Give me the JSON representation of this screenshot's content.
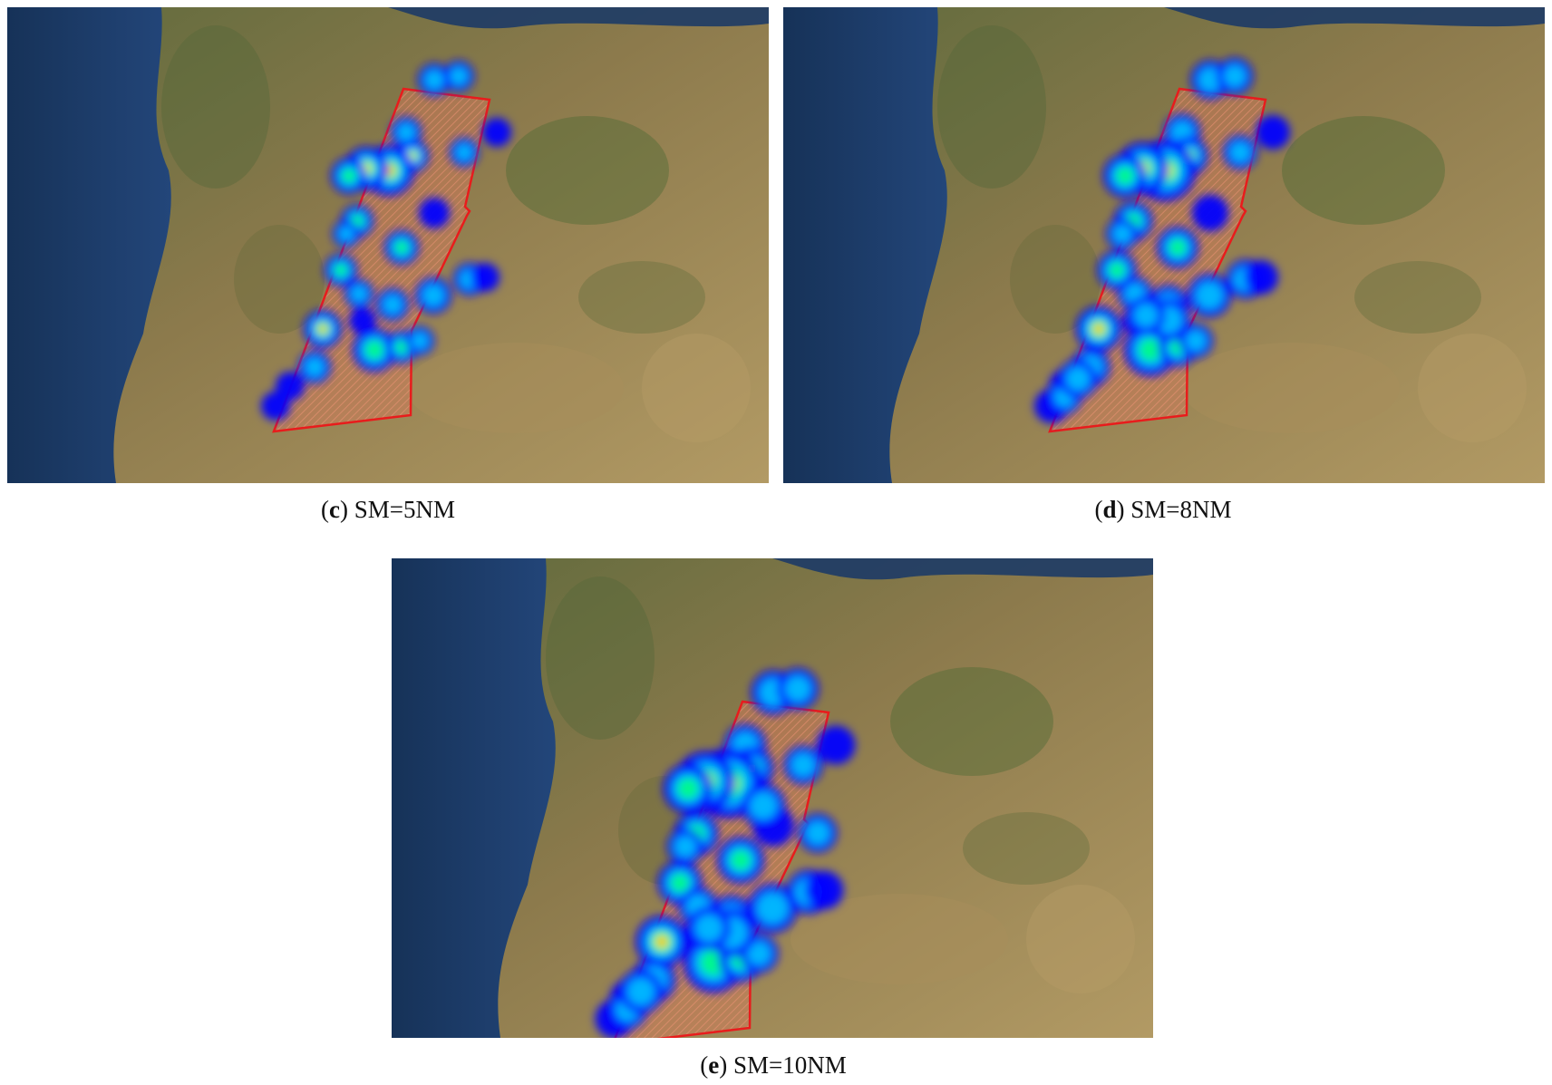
{
  "figure": {
    "panels": [
      {
        "key": "c",
        "letter": "c",
        "caption": "SM=5NM"
      },
      {
        "key": "d",
        "letter": "d",
        "caption": "SM=8NM"
      },
      {
        "key": "e",
        "letter": "e",
        "caption": "SM=10NM"
      }
    ]
  },
  "map": {
    "boundary_color": "#e81c1c",
    "sea_color": "#1d3b66",
    "land_color": "#8a7a4a",
    "heatmap_scale": [
      "#0000ff",
      "#00c8ff",
      "#00ff80",
      "#ffff00",
      "#ff0000"
    ]
  }
}
